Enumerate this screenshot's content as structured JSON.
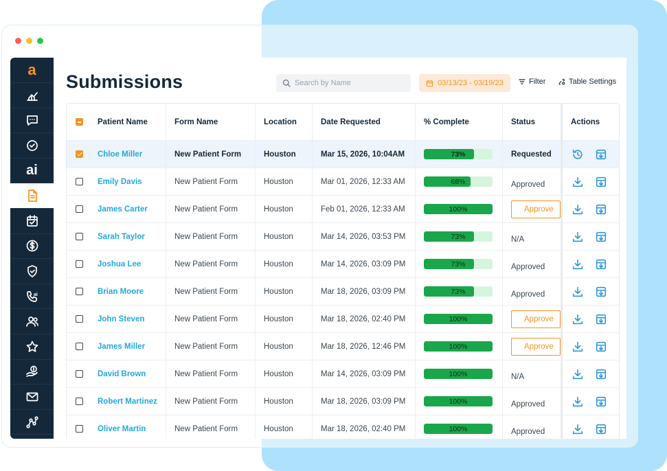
{
  "colors": {
    "accent": "#f7931e",
    "link": "#22a8e0",
    "sidebar": "#15283a",
    "progress": "#1aa64a",
    "progress_track": "#d5f5dd",
    "backdrop": "#aee1fb"
  },
  "window_dots": [
    "#ff5f57",
    "#febc2e",
    "#28c840"
  ],
  "sidebar": {
    "logo": "a",
    "items": [
      {
        "icon": "chart-icon",
        "active": false
      },
      {
        "icon": "chat-icon",
        "active": false
      },
      {
        "icon": "check-circle-icon",
        "active": false
      },
      {
        "icon": "ai-icon",
        "label": "ai",
        "active": false
      },
      {
        "icon": "document-icon",
        "active": true
      },
      {
        "icon": "calendar-check-icon",
        "active": false
      },
      {
        "icon": "dollar-icon",
        "active": false
      },
      {
        "icon": "shield-check-icon",
        "active": false
      },
      {
        "icon": "phone-ai-icon",
        "active": false
      },
      {
        "icon": "users-icon",
        "active": false
      },
      {
        "icon": "star-icon",
        "active": false
      },
      {
        "icon": "hand-dollar-icon",
        "active": false
      },
      {
        "icon": "mail-icon",
        "active": false
      },
      {
        "icon": "network-icon",
        "active": false
      }
    ]
  },
  "header": {
    "title": "Submissions",
    "search_placeholder": "Search by Name",
    "date_range": "03/13/23 - 03/19/23",
    "filter_label": "Filter",
    "table_settings_label": "Table Settings"
  },
  "table": {
    "columns": [
      "Patient Name",
      "Form Name",
      "Location",
      "Date Requested",
      "% Complete",
      "Status",
      "Actions"
    ],
    "rows": [
      {
        "name": "Chloe Miller",
        "form": "New Patient Form",
        "location": "Houston",
        "date": "Mar 15, 2026, 10:04AM",
        "progress": 73,
        "status": "Requested",
        "status_type": "text",
        "checked": true,
        "selected": true,
        "first_action": "history-icon"
      },
      {
        "name": "Emily Davis",
        "form": "New Patient Form",
        "location": "Houston",
        "date": "Mar 01, 2026, 12:33 AM",
        "progress": 68,
        "status": "Approved",
        "status_type": "text",
        "checked": false,
        "selected": false,
        "first_action": "download-icon"
      },
      {
        "name": "James Carter",
        "form": "New Patient Form",
        "location": "Houston",
        "date": "Feb 01, 2026, 12:33 AM",
        "progress": 100,
        "status": "Approve",
        "status_type": "button",
        "checked": false,
        "selected": false,
        "first_action": "download-icon"
      },
      {
        "name": "Sarah Taylor",
        "form": "New Patient Form",
        "location": "Houston",
        "date": "Mar 14, 2026, 03:53 PM",
        "progress": 73,
        "status": "N/A",
        "status_type": "text",
        "checked": false,
        "selected": false,
        "first_action": "download-icon"
      },
      {
        "name": "Joshua Lee",
        "form": "New Patient Form",
        "location": "Houston",
        "date": "Mar 14, 2026, 03:09 PM",
        "progress": 73,
        "status": "Approved",
        "status_type": "text",
        "checked": false,
        "selected": false,
        "first_action": "download-icon"
      },
      {
        "name": "Brian Moore",
        "form": "New Patient Form",
        "location": "Houston",
        "date": "Mar 18, 2026, 03:09 PM",
        "progress": 73,
        "status": "Approved",
        "status_type": "text",
        "checked": false,
        "selected": false,
        "first_action": "download-icon"
      },
      {
        "name": "John Steven",
        "form": "New Patient Form",
        "location": "Houston",
        "date": "Mar 18, 2026, 02:40 PM",
        "progress": 100,
        "status": "Approve",
        "status_type": "button",
        "checked": false,
        "selected": false,
        "first_action": "download-icon"
      },
      {
        "name": "James Miller",
        "form": "New Patient Form",
        "location": "Houston",
        "date": "Mar 18, 2026, 12:46 PM",
        "progress": 100,
        "status": "Approve",
        "status_type": "button",
        "checked": false,
        "selected": false,
        "first_action": "download-icon"
      },
      {
        "name": "David Brown",
        "form": "New Patient Form",
        "location": "Houston",
        "date": "Mar 14, 2026, 03:09 PM",
        "progress": 100,
        "status": "N/A",
        "status_type": "text",
        "checked": false,
        "selected": false,
        "first_action": "download-icon"
      },
      {
        "name": "Robert Martinez",
        "form": "New Patient Form",
        "location": "Houston",
        "date": "Mar 18, 2026, 03:09 PM",
        "progress": 100,
        "status": "Approved",
        "status_type": "text",
        "checked": false,
        "selected": false,
        "first_action": "download-icon"
      },
      {
        "name": "Oliver Martin",
        "form": "New Patient Form",
        "location": "Houston",
        "date": "Mar 18, 2026, 02:40 PM",
        "progress": 100,
        "status": "Approved",
        "status_type": "text",
        "checked": false,
        "selected": false,
        "first_action": "download-icon"
      }
    ]
  }
}
